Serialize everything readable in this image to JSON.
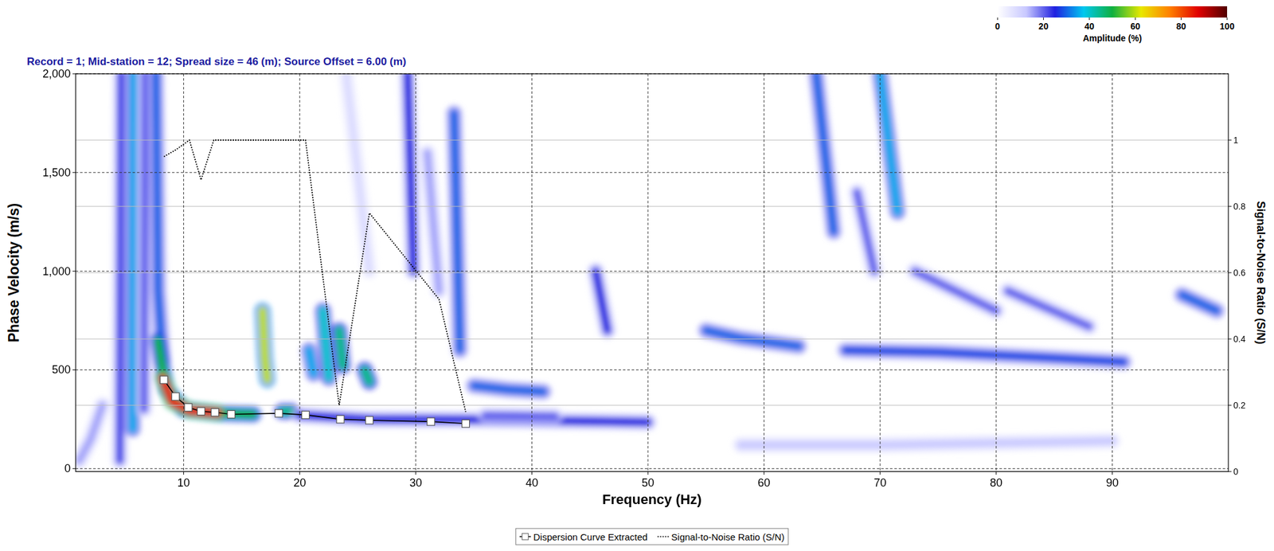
{
  "chart_data": {
    "type": "dispersion_image",
    "title": "Record = 1; Mid-station = 12; Spread size = 46 (m); Source Offset = 6.00 (m)",
    "x_label": "Frequency (Hz)",
    "y_label": "Phase Velocity (m/s)",
    "y2_label": "Signal-to-Noise Ratio (S/N)",
    "xlim": [
      0.7,
      100
    ],
    "ylim": [
      -15,
      2000
    ],
    "y2lim": [
      0,
      1.2
    ],
    "xticks": [
      10,
      20,
      30,
      40,
      50,
      60,
      70,
      80,
      90
    ],
    "yticks": [
      0,
      500,
      {
        "value": 1000,
        "label": "1,000"
      },
      {
        "value": 1500,
        "label": "1,500"
      },
      {
        "value": 2000,
        "label": "2,000"
      }
    ],
    "y2ticks": [
      0,
      0.2,
      0.4,
      0.6,
      0.8,
      1
    ],
    "grid": true,
    "legend": "bottom",
    "colorbar": {
      "label": "Amplitude (%)",
      "range": [
        0,
        100
      ],
      "ticks": [
        0,
        20,
        40,
        60,
        80,
        100
      ],
      "colors": [
        "#ffffff",
        "#c8c8ff",
        "#2020e0",
        "#00c8f0",
        "#10b040",
        "#e8e800",
        "#ff8000",
        "#e00000",
        "#500000"
      ]
    },
    "energy": [
      {
        "points": [
          [
            1,
            40
          ],
          [
            2,
            150
          ],
          [
            3,
            320
          ]
        ],
        "amplitude": 15
      },
      {
        "points": [
          [
            4.5,
            40
          ],
          [
            4.6,
            2000
          ]
        ],
        "amplitude": 22
      },
      {
        "points": [
          [
            5.6,
            200
          ],
          [
            5.7,
            2000
          ]
        ],
        "amplitude": 35
      },
      {
        "points": [
          [
            6.6,
            300
          ],
          [
            6.7,
            2000
          ]
        ],
        "amplitude": 20
      },
      {
        "points": [
          [
            7.6,
            2000
          ],
          [
            7.8,
            900
          ],
          [
            8.2,
            550
          ]
        ],
        "amplitude": 30
      },
      {
        "points": [
          [
            7.8,
            650
          ],
          [
            8.5,
            400
          ],
          [
            10,
            300
          ],
          [
            13,
            280
          ],
          [
            16,
            275
          ]
        ],
        "amplitude": 50
      },
      {
        "points": [
          [
            8.2,
            460
          ],
          [
            9,
            340
          ],
          [
            10.5,
            295
          ],
          [
            13,
            282
          ]
        ],
        "amplitude": 85
      },
      {
        "points": [
          [
            16.8,
            800
          ],
          [
            17,
            560
          ],
          [
            17.2,
            450
          ]
        ],
        "amplitude": 60
      },
      {
        "points": [
          [
            18.5,
            290
          ],
          [
            19.3,
            290
          ]
        ],
        "amplitude": 45
      },
      {
        "points": [
          [
            20.8,
            600
          ],
          [
            21.2,
            480
          ]
        ],
        "amplitude": 35
      },
      {
        "points": [
          [
            22,
            800
          ],
          [
            22.5,
            460
          ]
        ],
        "amplitude": 40
      },
      {
        "points": [
          [
            23.4,
            700
          ],
          [
            23.7,
            520
          ]
        ],
        "amplitude": 45
      },
      {
        "points": [
          [
            25.6,
            500
          ],
          [
            26,
            440
          ]
        ],
        "amplitude": 45
      },
      {
        "points": [
          [
            24,
            2000
          ],
          [
            26,
            1000
          ]
        ],
        "amplitude": 8
      },
      {
        "points": [
          [
            29.3,
            2000
          ],
          [
            29.8,
            1000
          ]
        ],
        "amplitude": 25
      },
      {
        "points": [
          [
            31,
            1600
          ],
          [
            32,
            900
          ]
        ],
        "amplitude": 15
      },
      {
        "points": [
          [
            33.3,
            1800
          ],
          [
            33.8,
            600
          ]
        ],
        "amplitude": 30
      },
      {
        "points": [
          [
            35,
            420
          ],
          [
            38,
            400
          ],
          [
            41,
            390
          ]
        ],
        "amplitude": 30
      },
      {
        "points": [
          [
            20,
            270
          ],
          [
            26,
            250
          ],
          [
            35,
            248
          ],
          [
            45,
            240
          ],
          [
            50,
            235
          ]
        ],
        "amplitude": 25
      },
      {
        "points": [
          [
            36,
            270
          ],
          [
            42,
            265
          ]
        ],
        "amplitude": 20
      },
      {
        "points": [
          [
            45.5,
            1000
          ],
          [
            46.5,
            700
          ]
        ],
        "amplitude": 25
      },
      {
        "points": [
          [
            55,
            700
          ],
          [
            58,
            660
          ],
          [
            63,
            620
          ]
        ],
        "amplitude": 30
      },
      {
        "points": [
          [
            67,
            600
          ],
          [
            75,
            590
          ],
          [
            85,
            560
          ],
          [
            91,
            540
          ]
        ],
        "amplitude": 28
      },
      {
        "points": [
          [
            64.5,
            2000
          ],
          [
            66,
            1200
          ]
        ],
        "amplitude": 30
      },
      {
        "points": [
          [
            68,
            1400
          ],
          [
            69.5,
            1000
          ]
        ],
        "amplitude": 20
      },
      {
        "points": [
          [
            70,
            2000
          ],
          [
            71.5,
            1300
          ]
        ],
        "amplitude": 35
      },
      {
        "points": [
          [
            73,
            1000
          ],
          [
            80,
            800
          ]
        ],
        "amplitude": 20
      },
      {
        "points": [
          [
            81,
            900
          ],
          [
            88,
            720
          ]
        ],
        "amplitude": 20
      },
      {
        "points": [
          [
            96,
            880
          ],
          [
            99,
            800
          ]
        ],
        "amplitude": 30
      },
      {
        "points": [
          [
            58,
            120
          ],
          [
            70,
            120
          ],
          [
            80,
            130
          ],
          [
            90,
            140
          ]
        ],
        "amplitude": 12
      }
    ],
    "series": [
      {
        "name": "Dispersion Curve Extracted",
        "type": "line",
        "marker": "square",
        "line_style": "solid",
        "color": "#000000",
        "x": [
          8.3,
          9.3,
          10.4,
          11.5,
          12.7,
          14.1,
          18.2,
          20.5,
          23.5,
          26,
          31.3,
          34.3
        ],
        "values": [
          450,
          365,
          310,
          290,
          285,
          275,
          280,
          272,
          250,
          245,
          238,
          228
        ]
      },
      {
        "name": "Signal-to-Noise Ratio (S/N)",
        "type": "line",
        "marker": "none",
        "line_style": "dotted",
        "color": "#000000",
        "axis": "y2",
        "x": [
          8.3,
          9.3,
          10.5,
          11.5,
          12.6,
          14,
          20.5,
          23.4,
          26,
          29,
          32,
          34.3
        ],
        "values": [
          0.95,
          0.97,
          1.0,
          0.88,
          1.0,
          1.0,
          1.0,
          0.2,
          0.78,
          0.65,
          0.52,
          0.18
        ]
      }
    ]
  }
}
